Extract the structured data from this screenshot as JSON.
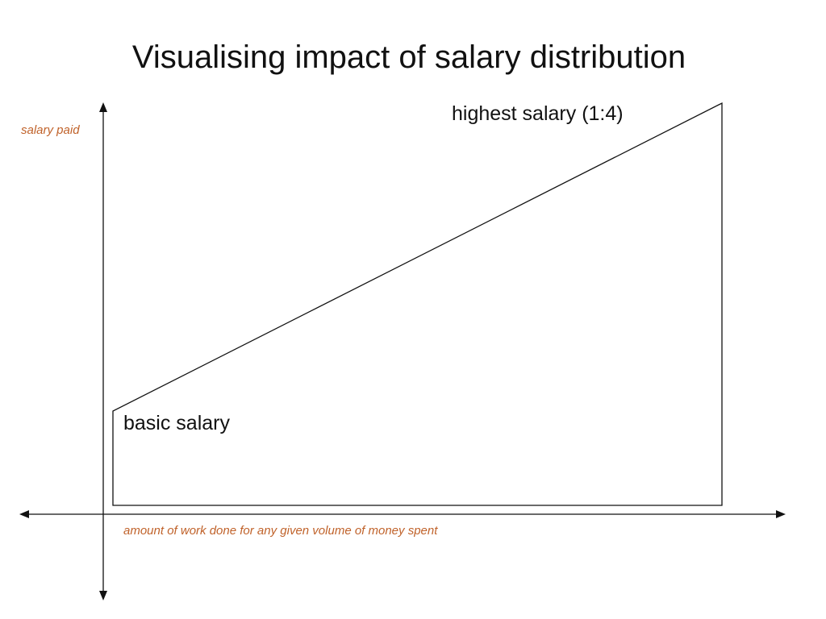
{
  "title": "Visualising impact of salary distribution",
  "y_axis_label": "salary paid",
  "x_axis_label": "amount of work done for any given volume of money spent",
  "labels": {
    "highest": "highest salary (1:4)",
    "basic": "basic salary"
  }
}
